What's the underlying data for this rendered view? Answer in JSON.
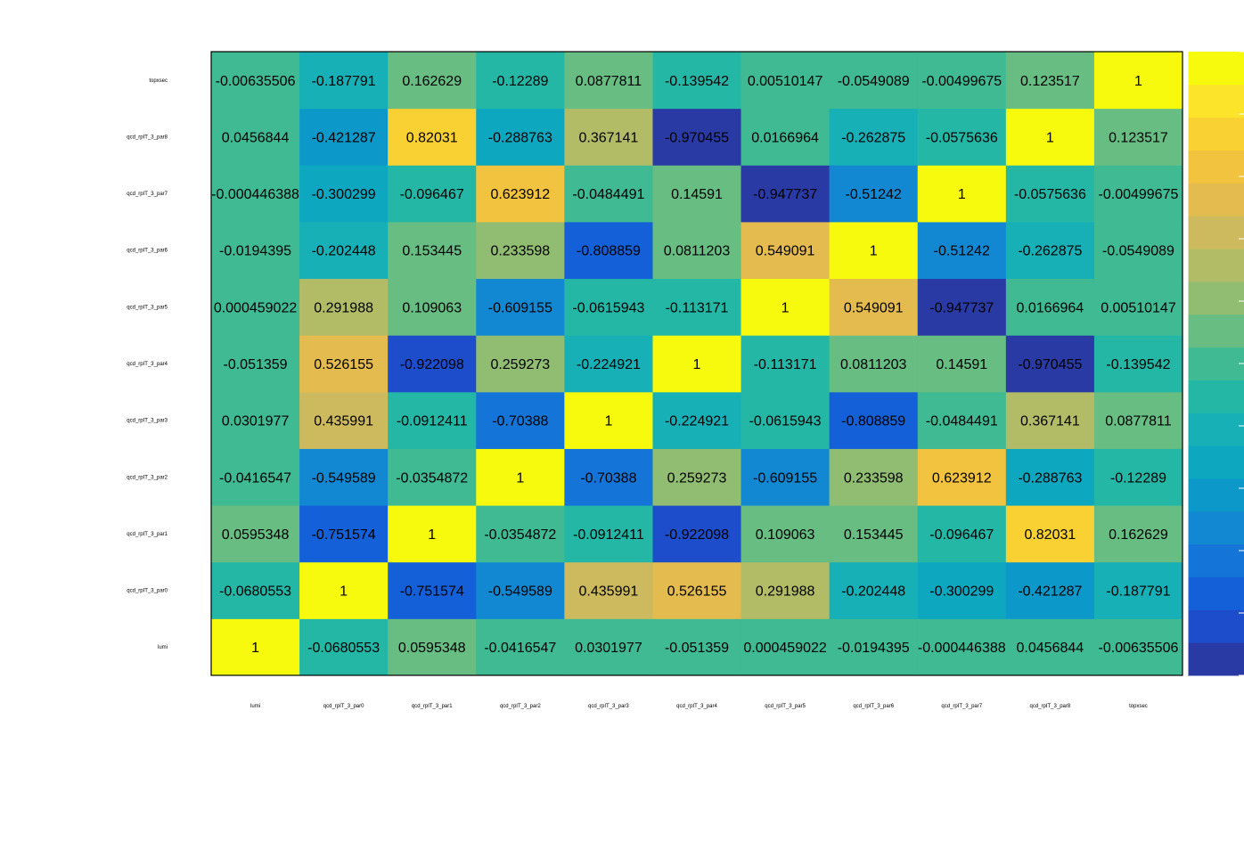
{
  "chart_data": {
    "type": "heatmap",
    "title": "",
    "xlabel": "",
    "ylabel": "",
    "grid": false,
    "zlim": [
      -1,
      1
    ],
    "x_labels": [
      "lumi",
      "qcd_rpIT_3_par0",
      "qcd_rpIT_3_par1",
      "qcd_rpIT_3_par2",
      "qcd_rpIT_3_par3",
      "qcd_rpIT_3_par4",
      "qcd_rpIT_3_par5",
      "qcd_rpIT_3_par6",
      "qcd_rpIT_3_par7",
      "qcd_rpIT_3_par8",
      "topxsec"
    ],
    "y_labels": [
      "lumi",
      "qcd_rpIT_3_par0",
      "qcd_rpIT_3_par1",
      "qcd_rpIT_3_par2",
      "qcd_rpIT_3_par3",
      "qcd_rpIT_3_par4",
      "qcd_rpIT_3_par5",
      "qcd_rpIT_3_par6",
      "qcd_rpIT_3_par7",
      "qcd_rpIT_3_par8",
      "topxsec"
    ],
    "cell_labels": [
      [
        "1",
        "-0.0680553",
        "0.0595348",
        "-0.0416547",
        "0.0301977",
        "-0.051359",
        "0.000459022",
        "-0.0194395",
        "-0.000446388",
        "0.0456844",
        "-0.00635506"
      ],
      [
        "-0.0680553",
        "1",
        "-0.751574",
        "-0.549589",
        "0.435991",
        "0.526155",
        "0.291988",
        "-0.202448",
        "-0.300299",
        "-0.421287",
        "-0.187791"
      ],
      [
        "0.0595348",
        "-0.751574",
        "1",
        "-0.0354872",
        "-0.0912411",
        "-0.922098",
        "0.109063",
        "0.153445",
        "-0.096467",
        "0.82031",
        "0.162629"
      ],
      [
        "-0.0416547",
        "-0.549589",
        "-0.0354872",
        "1",
        "-0.70388",
        "0.259273",
        "-0.609155",
        "0.233598",
        "0.623912",
        "-0.288763",
        "-0.12289"
      ],
      [
        "0.0301977",
        "0.435991",
        "-0.0912411",
        "-0.70388",
        "1",
        "-0.224921",
        "-0.0615943",
        "-0.808859",
        "-0.0484491",
        "0.367141",
        "0.0877811"
      ],
      [
        "-0.051359",
        "0.526155",
        "-0.922098",
        "0.259273",
        "-0.224921",
        "1",
        "-0.113171",
        "0.0811203",
        "0.14591",
        "-0.970455",
        "-0.139542"
      ],
      [
        "0.000459022",
        "0.291988",
        "0.109063",
        "-0.609155",
        "-0.0615943",
        "-0.113171",
        "1",
        "0.549091",
        "-0.947737",
        "0.0166964",
        "0.00510147"
      ],
      [
        "-0.0194395",
        "-0.202448",
        "0.153445",
        "0.233598",
        "-0.808859",
        "0.0811203",
        "0.549091",
        "1",
        "-0.51242",
        "-0.262875",
        "-0.0549089"
      ],
      [
        "-0.000446388",
        "-0.300299",
        "-0.096467",
        "0.623912",
        "-0.0484491",
        "0.14591",
        "-0.947737",
        "-0.51242",
        "1",
        "-0.0575636",
        "-0.00499675"
      ],
      [
        "0.0456844",
        "-0.421287",
        "0.82031",
        "-0.288763",
        "0.367141",
        "-0.970455",
        "0.0166964",
        "-0.262875",
        "-0.0575636",
        "1",
        "0.123517"
      ],
      [
        "-0.00635506",
        "-0.187791",
        "0.162629",
        "-0.12289",
        "0.0877811",
        "-0.139542",
        "0.00510147",
        "-0.0549089",
        "-0.00499675",
        "0.123517",
        "1"
      ]
    ],
    "color_palette": [
      "#2a3aa5",
      "#1d4dcb",
      "#1460d8",
      "#1474d8",
      "#1288d3",
      "#0c99c9",
      "#0ea7c0",
      "#17b0b6",
      "#24b7a6",
      "#3fba93",
      "#67bd82",
      "#91bd72",
      "#b2bc66",
      "#cdba5e",
      "#e3bb4e",
      "#f2c33e",
      "#fad132",
      "#fbe429",
      "#f8fa0e"
    ]
  }
}
